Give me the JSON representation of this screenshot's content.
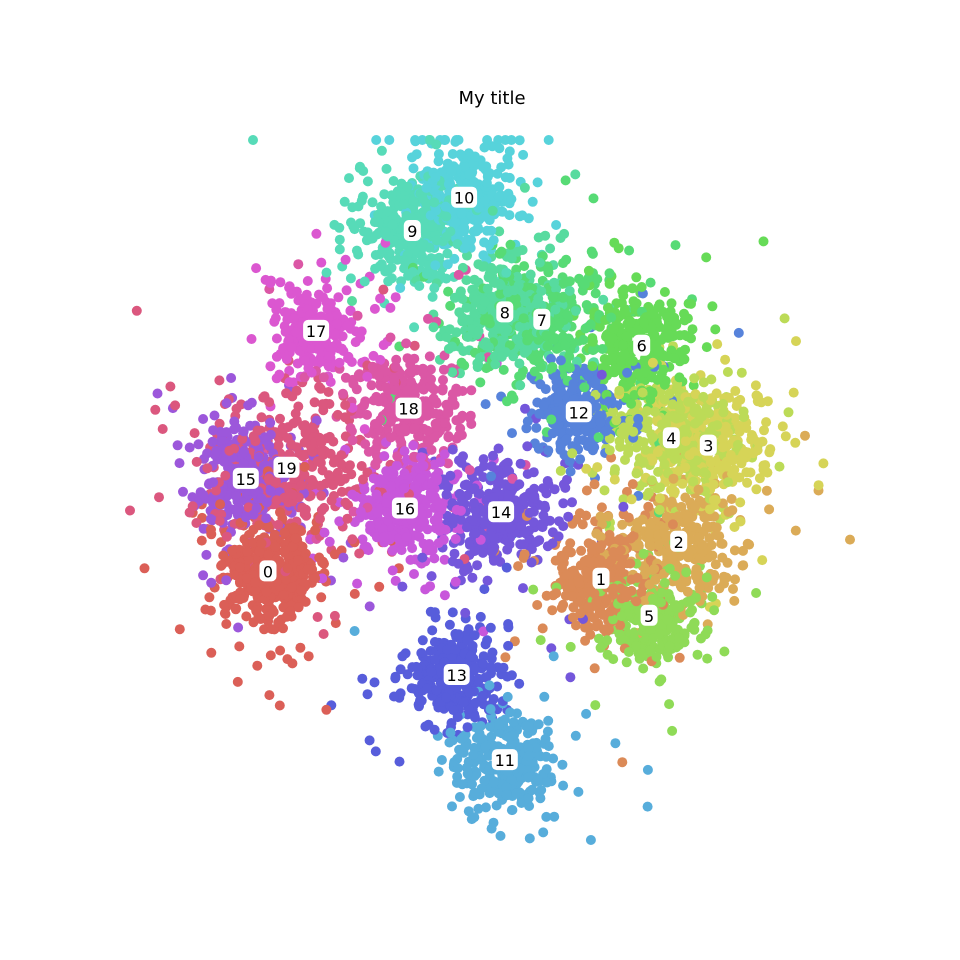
{
  "chart_data": {
    "type": "scatter",
    "title": "My title",
    "axes_visible": false,
    "grid": false,
    "xlim": [
      -100,
      100
    ],
    "ylim": [
      -100,
      100
    ],
    "clusters": [
      {
        "label": "0",
        "center": [
          -60,
          -22
        ],
        "spread": 7,
        "count": 420,
        "color": "#db5f57"
      },
      {
        "label": "1",
        "center": [
          30,
          -24
        ],
        "spread": 7,
        "count": 300,
        "color": "#db8a57"
      },
      {
        "label": "2",
        "center": [
          51,
          -14
        ],
        "spread": 8,
        "count": 300,
        "color": "#dbab57"
      },
      {
        "label": "3",
        "center": [
          59,
          12
        ],
        "spread": 8,
        "count": 280,
        "color": "#d6d457"
      },
      {
        "label": "4",
        "center": [
          49,
          14
        ],
        "spread": 8,
        "count": 300,
        "color": "#bcdb57"
      },
      {
        "label": "5",
        "center": [
          43,
          -34
        ],
        "spread": 6,
        "count": 300,
        "color": "#8fdb57"
      },
      {
        "label": "6",
        "center": [
          41,
          39
        ],
        "spread": 7,
        "count": 300,
        "color": "#66db57"
      },
      {
        "label": "7",
        "center": [
          14,
          46
        ],
        "spread": 9,
        "count": 300,
        "color": "#57db75"
      },
      {
        "label": "8",
        "center": [
          4,
          48
        ],
        "spread": 8,
        "count": 320,
        "color": "#57db9f"
      },
      {
        "label": "9",
        "center": [
          -21,
          70
        ],
        "spread": 7,
        "count": 320,
        "color": "#57dbb8"
      },
      {
        "label": "10",
        "center": [
          -7,
          79
        ],
        "spread": 7,
        "count": 320,
        "color": "#57d3db"
      },
      {
        "label": "11",
        "center": [
          4,
          -73
        ],
        "spread": 7,
        "count": 280,
        "color": "#57addb"
      },
      {
        "label": "12",
        "center": [
          24,
          21
        ],
        "spread": 6,
        "count": 240,
        "color": "#5783db"
      },
      {
        "label": "13",
        "center": [
          -9,
          -50
        ],
        "spread": 6,
        "count": 300,
        "color": "#575ddb"
      },
      {
        "label": "14",
        "center": [
          3,
          -6
        ],
        "spread": 7,
        "count": 340,
        "color": "#7457db"
      },
      {
        "label": "15",
        "center": [
          -66,
          3
        ],
        "spread": 7,
        "count": 320,
        "color": "#9c57db"
      },
      {
        "label": "16",
        "center": [
          -23,
          -5
        ],
        "spread": 7,
        "count": 300,
        "color": "#c857db"
      },
      {
        "label": "17",
        "center": [
          -47,
          43
        ],
        "spread": 6,
        "count": 240,
        "color": "#db57d0"
      },
      {
        "label": "18",
        "center": [
          -22,
          22
        ],
        "spread": 8,
        "count": 320,
        "color": "#db57a5"
      },
      {
        "label": "19",
        "center": [
          -55,
          6
        ],
        "spread": 10,
        "count": 360,
        "color": "#db577e"
      }
    ]
  }
}
